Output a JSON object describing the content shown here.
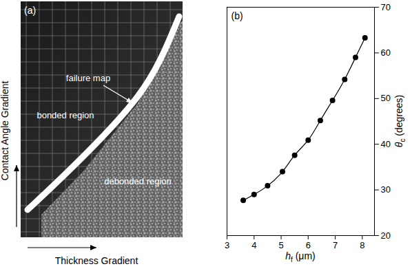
{
  "chart_data": [
    {
      "type": "photo",
      "title": "(a)",
      "x_label": "Thickness Gradient",
      "y_label": "Contact Angle Gradient",
      "annotations": [
        "failure map",
        "bonded region",
        "debonded region"
      ]
    },
    {
      "type": "line",
      "title": "(b)",
      "x_label": "hf (μm)",
      "y_label": "θc (degrees)",
      "x": [
        3.6,
        4.0,
        4.5,
        5.05,
        5.5,
        6.0,
        6.45,
        6.9,
        7.35,
        7.75,
        8.1
      ],
      "values": [
        27.7,
        29.0,
        30.9,
        34.0,
        37.6,
        40.9,
        45.2,
        49.6,
        54.2,
        59.0,
        63.3
      ],
      "color": "#000000",
      "marker": "circle",
      "xlim": [
        3,
        8.45
      ],
      "xticks": [
        3,
        4,
        5,
        6,
        7,
        8
      ],
      "ylim": [
        20,
        70
      ],
      "yticks": [
        20,
        30,
        40,
        50,
        60,
        70
      ]
    }
  ]
}
